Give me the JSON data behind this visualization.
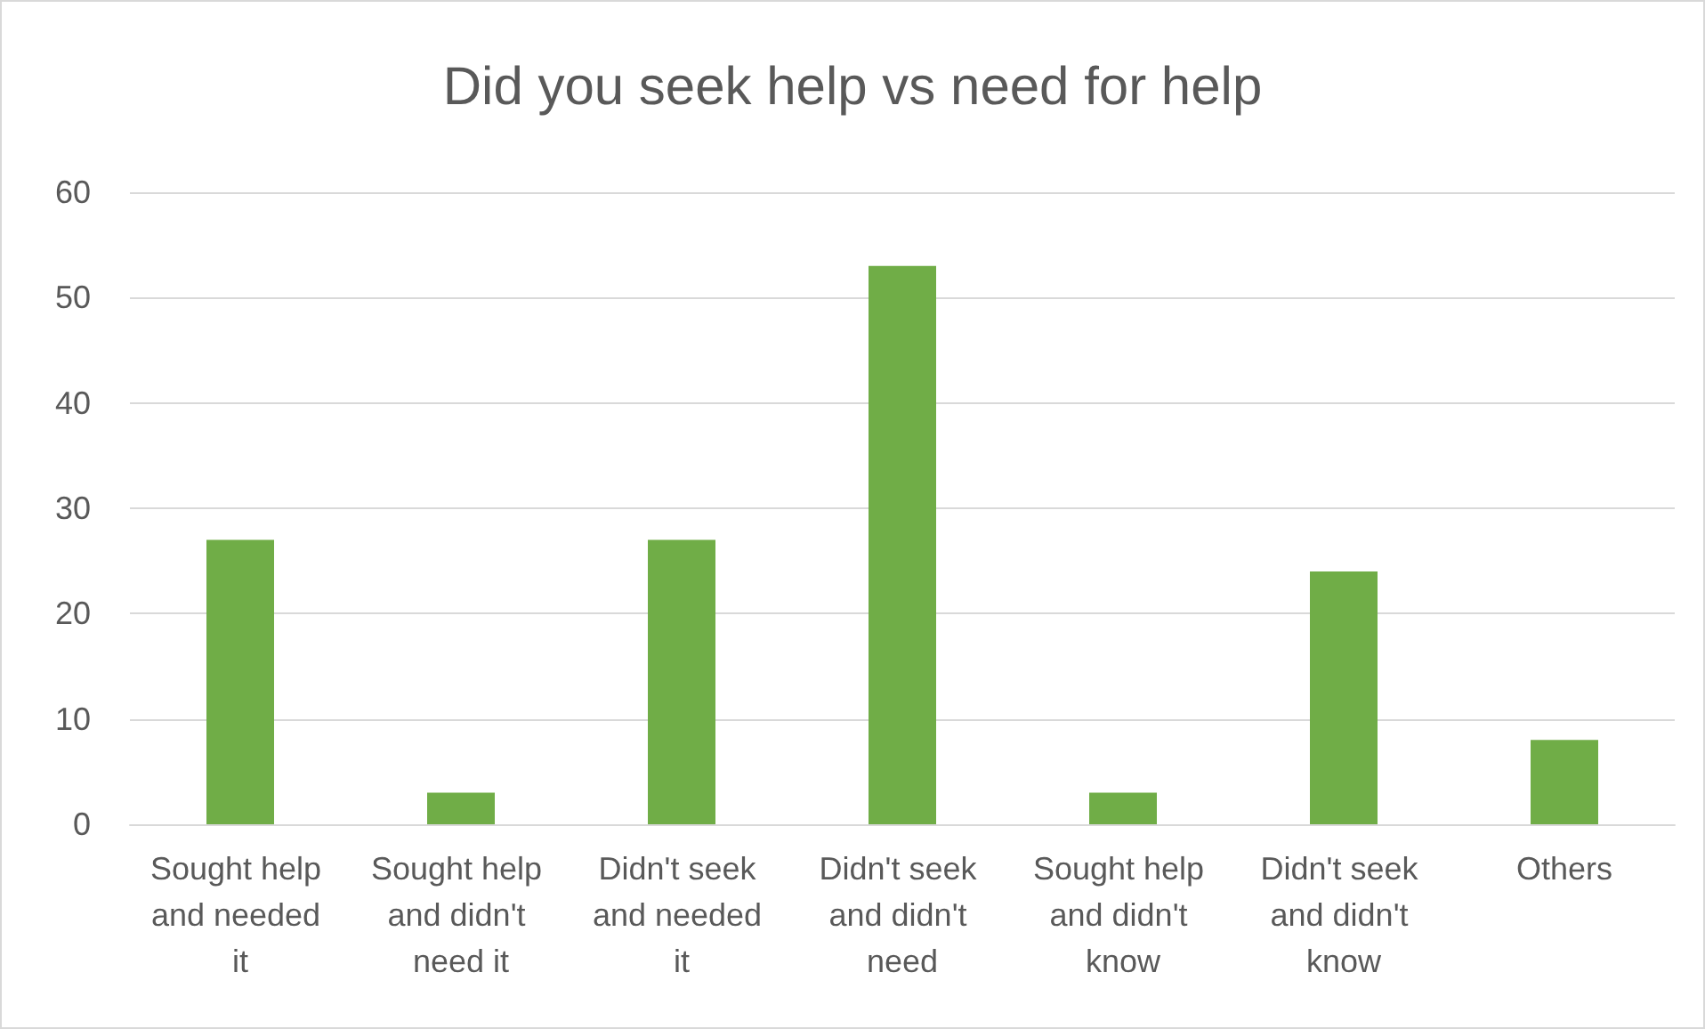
{
  "chart_data": {
    "type": "bar",
    "title": "Did you seek help vs need for help",
    "categories": [
      "Sought help and needed it",
      "Sought help and didn't need it",
      "Didn't seek and needed it",
      "Didn't seek and didn't need",
      "Sought help and didn't know",
      "Didn't seek and didn't know",
      "Others"
    ],
    "values": [
      27,
      3,
      27,
      53,
      3,
      24,
      8
    ],
    "color": "#70ad47",
    "ylim": [
      0,
      60
    ],
    "yticks": [
      0,
      10,
      20,
      30,
      40,
      50,
      60
    ],
    "grid": "y"
  }
}
